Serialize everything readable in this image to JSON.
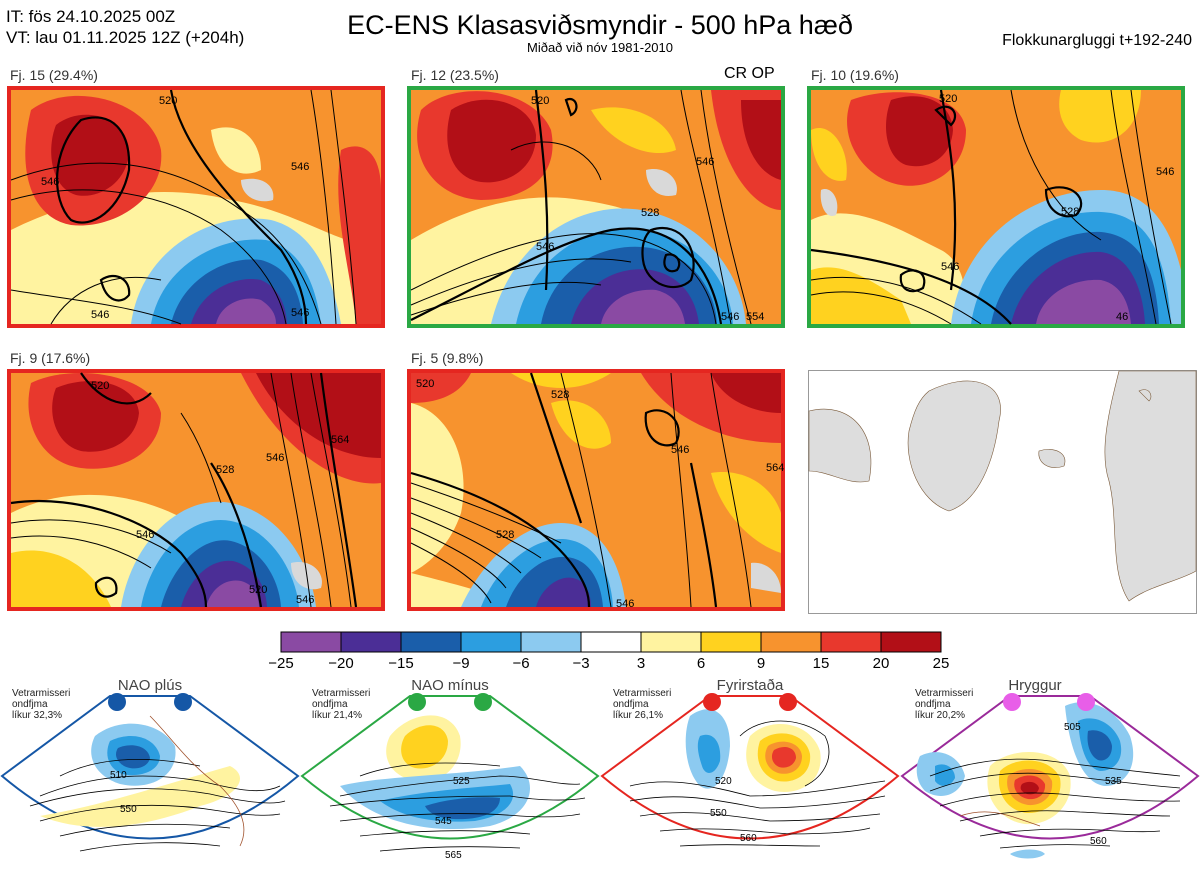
{
  "header": {
    "it_line": "IT: fös 24.10.2025 00Z",
    "vt_line": "VT: lau 01.11.2025 12Z  (+204h)",
    "title": "EC-ENS Klasasviðsmyndir - 500 hPa hæð",
    "subtitle": "Miðað við nóv 1981-2010",
    "window": "Flokkunargluggi t+192-240"
  },
  "crop_label": "CR OP",
  "clusters": [
    {
      "label": "Fj. 15 (29.4%)",
      "frame_color": "#e52620",
      "contours": [
        "520",
        "546",
        "546",
        "546",
        "546"
      ]
    },
    {
      "label": "Fj. 12 (23.5%)",
      "frame_color": "#2aa844",
      "contours": [
        "520",
        "546",
        "528",
        "546",
        "554",
        "546"
      ]
    },
    {
      "label": "Fj. 10 (19.6%)",
      "frame_color": "#2aa844",
      "contours": [
        "520",
        "546",
        "528",
        "546",
        "46"
      ]
    },
    {
      "label": "Fj. 9 (17.6%)",
      "frame_color": "#e52620",
      "contours": [
        "520",
        "546",
        "528",
        "546",
        "564",
        "520",
        "546"
      ]
    },
    {
      "label": "Fj. 5 (9.8%)",
      "frame_color": "#e52620",
      "contours": [
        "520",
        "528",
        "546",
        "528",
        "564",
        "546"
      ]
    }
  ],
  "colorbar": {
    "ticks": [
      "−25",
      "−20",
      "−15",
      "−9",
      "−6",
      "−3",
      "3",
      "6",
      "9",
      "15",
      "20",
      "25"
    ],
    "colors": [
      "#8a4aa3",
      "#4b2e96",
      "#1a5eaa",
      "#2c9ee0",
      "#8ccaf0",
      "#ffffff",
      "#fff3a0",
      "#ffd21f",
      "#f7932e",
      "#e8382d",
      "#b20f17"
    ]
  },
  "regimes": [
    {
      "title": "NAO plús",
      "note": [
        "Vetrarmisseri",
        "ondfjma",
        "líkur 32,3%"
      ],
      "color": "#1557a6",
      "contours": [
        "510",
        "550"
      ]
    },
    {
      "title": "NAO mínus",
      "note": [
        "Vetrarmisseri",
        "ondfjma",
        "líkur 21,4%"
      ],
      "color": "#2aa844",
      "contours": [
        "525",
        "545",
        "565"
      ]
    },
    {
      "title": "Fyrirstaða",
      "note": [
        "Vetrarmisseri",
        "ondfjma",
        "líkur 26,1%"
      ],
      "color": "#e52620",
      "contours": [
        "520",
        "550",
        "560"
      ]
    },
    {
      "title": "Hryggur",
      "note": [
        "Vetrarmisseri",
        "ondfjma",
        "líkur 20,2%"
      ],
      "color": "#e85ee8",
      "contours": [
        "505",
        "535",
        "560"
      ]
    }
  ]
}
